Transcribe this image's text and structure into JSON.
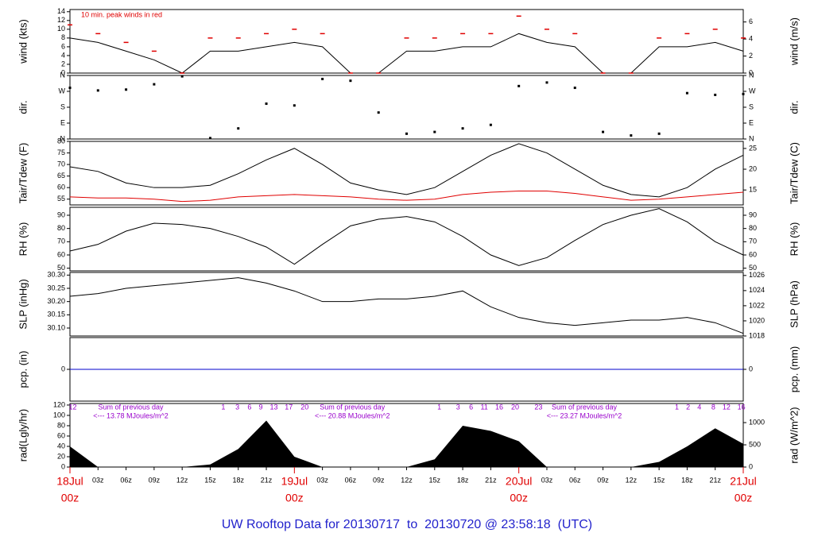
{
  "chart_data": {
    "title": "UW Rooftop Data for 20130717  to  20130720 @ 23:58:18  (UTC)",
    "x": [
      0,
      3,
      6,
      9,
      12,
      15,
      18,
      21,
      24,
      27,
      30,
      33,
      36,
      39,
      42,
      45,
      48,
      51,
      54,
      57,
      60,
      63,
      66,
      69,
      72
    ],
    "xlim": [
      0,
      72
    ],
    "xticks": [
      {
        "value": 0,
        "label": "00z"
      },
      {
        "value": 3,
        "label": "03z"
      },
      {
        "value": 6,
        "label": "06z"
      },
      {
        "value": 9,
        "label": "09z"
      },
      {
        "value": 12,
        "label": "12z"
      },
      {
        "value": 15,
        "label": "15z"
      },
      {
        "value": 18,
        "label": "18z"
      },
      {
        "value": 21,
        "label": "21z"
      },
      {
        "value": 24,
        "label": "00z"
      },
      {
        "value": 27,
        "label": "03z"
      },
      {
        "value": 30,
        "label": "06z"
      },
      {
        "value": 33,
        "label": "09z"
      },
      {
        "value": 36,
        "label": "12z"
      },
      {
        "value": 39,
        "label": "15z"
      },
      {
        "value": 42,
        "label": "18z"
      },
      {
        "value": 45,
        "label": "21z"
      },
      {
        "value": 48,
        "label": "00z"
      },
      {
        "value": 51,
        "label": "03z"
      },
      {
        "value": 54,
        "label": "06z"
      },
      {
        "value": 57,
        "label": "09z"
      },
      {
        "value": 60,
        "label": "12z"
      },
      {
        "value": 63,
        "label": "15z"
      },
      {
        "value": 66,
        "label": "18z"
      },
      {
        "value": 69,
        "label": "21z"
      },
      {
        "value": 72,
        "label": "00z"
      }
    ],
    "date_labels": [
      {
        "value": 0,
        "label": "18Jul"
      },
      {
        "value": 24,
        "label": "19Jul"
      },
      {
        "value": 48,
        "label": "20Jul"
      },
      {
        "value": 72,
        "label": "21Jul"
      }
    ],
    "panels": [
      {
        "type": "line",
        "ylabel": "wind (kts)",
        "y2label": "wind (m/s)",
        "ylim": [
          0,
          14.5
        ],
        "yticks": [
          0,
          2,
          4,
          6,
          8,
          10,
          12,
          14
        ],
        "y2lim": [
          0,
          7.46
        ],
        "y2ticks": [
          0,
          2,
          4,
          6
        ],
        "annotation": "10 min. peak winds in red",
        "series": [
          {
            "name": "wind",
            "color": "#000000",
            "values": [
              8,
              7,
              5,
              3,
              0,
              5,
              5,
              6,
              7,
              6,
              0,
              0,
              5,
              5,
              6,
              6,
              9,
              7,
              6,
              0,
              0,
              6,
              6,
              7,
              5
            ]
          },
          {
            "name": "peak",
            "type": "dash",
            "color": "#e00000",
            "values": [
              11,
              9,
              7,
              5,
              0,
              8,
              8,
              9,
              10,
              9,
              0,
              0,
              8,
              8,
              9,
              9,
              13,
              10,
              9,
              0,
              0,
              8,
              9,
              10,
              8
            ]
          }
        ]
      },
      {
        "type": "scatter",
        "ylabel": "dir.",
        "y2label": "dir.",
        "ylim": [
          0,
          360
        ],
        "yticks": [
          {
            "value": 0,
            "label": "N"
          },
          {
            "value": 90,
            "label": "E"
          },
          {
            "value": 180,
            "label": "S"
          },
          {
            "value": 270,
            "label": "W"
          },
          {
            "value": 360,
            "label": "N"
          }
        ],
        "y2lim": [
          0,
          360
        ],
        "y2ticks": [
          {
            "value": 0,
            "label": "N"
          },
          {
            "value": 90,
            "label": "E"
          },
          {
            "value": 180,
            "label": "S"
          },
          {
            "value": 270,
            "label": "W"
          },
          {
            "value": 360,
            "label": "N"
          }
        ],
        "series": [
          {
            "name": "direction",
            "color": "#000000",
            "values": [
              290,
              275,
              280,
              310,
              355,
              5,
              60,
              200,
              190,
              340,
              330,
              150,
              30,
              40,
              60,
              80,
              300,
              320,
              290,
              40,
              20,
              30,
              260,
              250,
              255
            ]
          }
        ]
      },
      {
        "type": "line",
        "ylabel": "Tair/Tdew (F)",
        "y2label": "Tair/Tdew (C)",
        "ylim": [
          52.5,
          80
        ],
        "yticks": [
          55,
          60,
          65,
          70,
          75,
          80
        ],
        "y2lim": [
          11.4,
          26.7
        ],
        "y2ticks": [
          15,
          20,
          25
        ],
        "series": [
          {
            "name": "Tair",
            "color": "#000000",
            "values": [
              69,
              67,
              62,
              60,
              60,
              61,
              66,
              72,
              77,
              70,
              62,
              59,
              57,
              60,
              67,
              74,
              79,
              75,
              68,
              61,
              57,
              56,
              60,
              68,
              74
            ]
          },
          {
            "name": "Tdew",
            "color": "#e00000",
            "values": [
              56,
              55.5,
              55.5,
              55,
              54,
              54.5,
              56,
              56.5,
              57,
              56.5,
              56,
              55,
              54.5,
              55,
              57,
              58,
              58.5,
              58.5,
              57.5,
              56,
              54.5,
              55,
              56,
              57,
              58
            ]
          }
        ]
      },
      {
        "type": "line",
        "ylabel": "RH (%)",
        "y2label": "RH (%)",
        "ylim": [
          48,
          96
        ],
        "yticks": [
          50,
          60,
          70,
          80,
          90
        ],
        "y2lim": [
          48,
          96
        ],
        "y2ticks": [
          50,
          60,
          70,
          80,
          90
        ],
        "series": [
          {
            "name": "RH",
            "color": "#000000",
            "values": [
              63,
              68,
              78,
              84,
              83,
              80,
              74,
              66,
              53,
              68,
              82,
              87,
              89,
              85,
              74,
              60,
              52,
              58,
              71,
              83,
              90,
              95,
              85,
              70,
              60
            ]
          }
        ]
      },
      {
        "type": "line",
        "ylabel": "SLP (inHg)",
        "y2label": "SLP (hPa)",
        "ylim": [
          30.07,
          30.31
        ],
        "yticks": [
          {
            "value": 30.1,
            "label": "30.10"
          },
          30.15,
          {
            "value": 30.2,
            "label": "30.20"
          },
          30.25,
          {
            "value": 30.3,
            "label": "30.30"
          }
        ],
        "y2lim": [
          1018,
          1026.4
        ],
        "y2ticks": [
          1018,
          1020,
          1022,
          1024,
          1026
        ],
        "series": [
          {
            "name": "SLP",
            "color": "#000000",
            "values": [
              30.22,
              30.23,
              30.25,
              30.26,
              30.27,
              30.28,
              30.29,
              30.27,
              30.24,
              30.2,
              30.2,
              30.21,
              30.21,
              30.22,
              30.24,
              30.18,
              30.14,
              30.12,
              30.11,
              30.12,
              30.13,
              30.13,
              30.14,
              30.12,
              30.08
            ]
          }
        ]
      },
      {
        "type": "line",
        "ylabel": "pcp. (in)",
        "y2label": "pcp. (mm)",
        "ylim": [
          -1,
          1
        ],
        "yticks": [
          0
        ],
        "y2lim": [
          -25.4,
          25.4
        ],
        "y2ticks": [
          0
        ],
        "series": [
          {
            "name": "pcp",
            "color": "#0000cc",
            "values": [
              0,
              0,
              0,
              0,
              0,
              0,
              0,
              0,
              0,
              0,
              0,
              0,
              0,
              0,
              0,
              0,
              0,
              0,
              0,
              0,
              0,
              0,
              0,
              0,
              0
            ]
          }
        ]
      },
      {
        "type": "area",
        "ylabel": "rad(Lgly/hr)",
        "y2label": "rad (W/m^2)",
        "ylim": [
          0,
          123
        ],
        "yticks": [
          0,
          20,
          40,
          60,
          80,
          100,
          120
        ],
        "y2lim": [
          0,
          1430
        ],
        "y2ticks": [
          0,
          500,
          1000
        ],
        "hour_labels": [
          {
            "x": 0.3,
            "label": "12"
          },
          {
            "x": 16.4,
            "label": "1"
          },
          {
            "x": 17.9,
            "label": "3"
          },
          {
            "x": 19.2,
            "label": "6"
          },
          {
            "x": 20.4,
            "label": "9"
          },
          {
            "x": 21.8,
            "label": "13"
          },
          {
            "x": 23.4,
            "label": "17"
          },
          {
            "x": 25.1,
            "label": "20"
          },
          {
            "x": 39.5,
            "label": "1"
          },
          {
            "x": 41.5,
            "label": "3"
          },
          {
            "x": 42.9,
            "label": "6"
          },
          {
            "x": 44.3,
            "label": "11"
          },
          {
            "x": 45.9,
            "label": "16"
          },
          {
            "x": 47.6,
            "label": "20"
          },
          {
            "x": 50.1,
            "label": "23"
          },
          {
            "x": 64.9,
            "label": "1"
          },
          {
            "x": 66.1,
            "label": "2"
          },
          {
            "x": 67.3,
            "label": "4"
          },
          {
            "x": 68.8,
            "label": "8"
          },
          {
            "x": 70.2,
            "label": "12"
          },
          {
            "x": 71.8,
            "label": "16"
          }
        ],
        "daily_sums": [
          {
            "x": 6.5,
            "title": "Sum of previous day",
            "text": "<--- 13.78 MJoules/m^2"
          },
          {
            "x": 30.2,
            "title": "Sum of previous day",
            "text": "<--- 20.88 MJoules/m^2"
          },
          {
            "x": 55,
            "title": "Sum of previous day",
            "text": "<--- 23.27 MJoules/m^2"
          }
        ],
        "series": [
          {
            "name": "rad",
            "color": "#000000",
            "values": [
              40,
              0,
              0,
              0,
              0,
              5,
              35,
              90,
              20,
              0,
              0,
              0,
              0,
              15,
              80,
              70,
              50,
              0,
              0,
              0,
              0,
              10,
              40,
              75,
              45
            ]
          }
        ]
      }
    ]
  }
}
